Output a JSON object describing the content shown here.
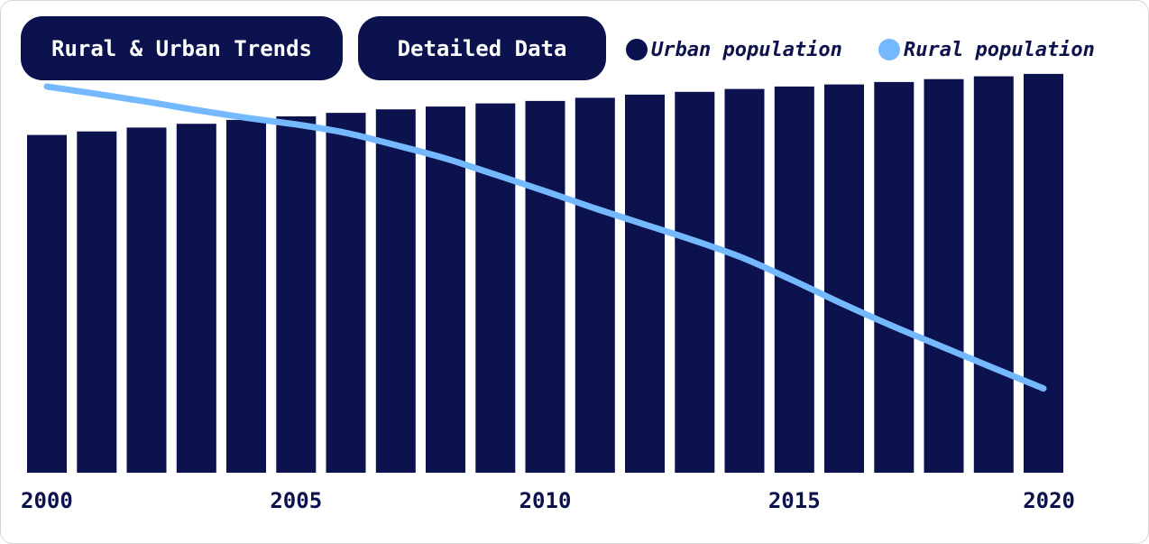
{
  "tabs": [
    {
      "label": "Rural & Urban Trends"
    },
    {
      "label": "Detailed Data"
    }
  ],
  "legend": [
    {
      "label": "Urban population",
      "color": "#0b124d"
    },
    {
      "label": "Rural population",
      "color": "#74b9ff"
    }
  ],
  "chart_data": {
    "type": "bar",
    "categories": [
      2000,
      2001,
      2002,
      2003,
      2004,
      2005,
      2006,
      2007,
      2008,
      2009,
      2010,
      2011,
      2012,
      2013,
      2014,
      2015,
      2016,
      2017,
      2018,
      2019,
      2020
    ],
    "series": [
      {
        "name": "Urban population",
        "type": "bar",
        "color": "#0b124d",
        "values": [
          96.2,
          97.2,
          98.3,
          99.4,
          100.5,
          101.5,
          102.5,
          103.5,
          104.3,
          105.2,
          105.9,
          106.8,
          107.7,
          108.5,
          109.3,
          110.0,
          110.6,
          111.3,
          112.1,
          112.9,
          113.6
        ]
      },
      {
        "name": "Rural population",
        "type": "line",
        "color": "#74b9ff",
        "values": [
          110.0,
          107.9,
          105.7,
          103.3,
          101.1,
          99.2,
          96.8,
          93.3,
          89.5,
          84.9,
          80.2,
          75.3,
          70.7,
          66.1,
          61.0,
          54.6,
          47.9,
          41.6,
          35.7,
          29.8,
          24.0
        ]
      }
    ],
    "x_tick_labels": [
      "2000",
      "2005",
      "2010",
      "2015",
      "2020"
    ],
    "ylim": [
      0,
      120
    ],
    "grid": false,
    "legend_position": "top-right"
  }
}
